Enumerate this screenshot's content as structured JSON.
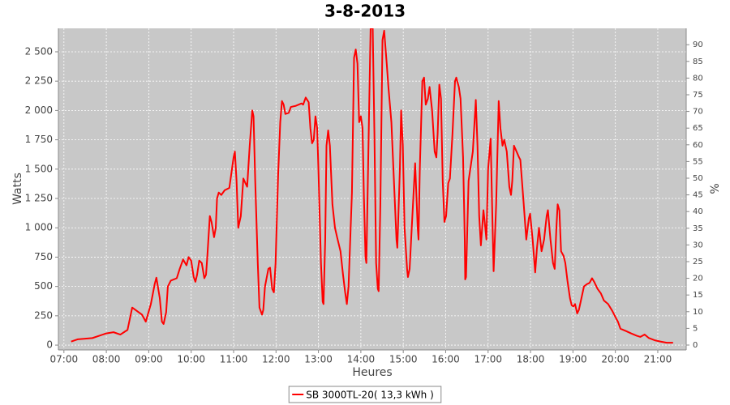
{
  "chart_data": {
    "type": "line",
    "title": "3-8-2013",
    "x_label": "Heures",
    "y_label": "Watts",
    "y2_label": "%",
    "grid": true,
    "legend": "bottom",
    "xlim": [
      6.87,
      21.67
    ],
    "xticks": [
      {
        "value": 7,
        "label": "07:00"
      },
      {
        "value": 8,
        "label": "08:00"
      },
      {
        "value": 9,
        "label": "09:00"
      },
      {
        "value": 10,
        "label": "10:00"
      },
      {
        "value": 11,
        "label": "11:00"
      },
      {
        "value": 12,
        "label": "12:00"
      },
      {
        "value": 13,
        "label": "13:00"
      },
      {
        "value": 14,
        "label": "14:00"
      },
      {
        "value": 15,
        "label": "15:00"
      },
      {
        "value": 16,
        "label": "16:00"
      },
      {
        "value": 17,
        "label": "17:00"
      },
      {
        "value": 18,
        "label": "18:00"
      },
      {
        "value": 19,
        "label": "19:00"
      },
      {
        "value": 20,
        "label": "20:00"
      },
      {
        "value": 21,
        "label": "21:00"
      }
    ],
    "ylim": [
      -41,
      2700
    ],
    "yticks": [
      0,
      250,
      500,
      750,
      {
        "value": 1000,
        "label": "1 000"
      },
      {
        "value": 1250,
        "label": "1 250"
      },
      {
        "value": 1500,
        "label": "1 500"
      },
      {
        "value": 1750,
        "label": "1 750"
      },
      {
        "value": 2000,
        "label": "2 000"
      },
      {
        "value": 2250,
        "label": "2 250"
      },
      {
        "value": 2500,
        "label": "2 500"
      }
    ],
    "y2lim": [
      -1.46,
      94.9
    ],
    "y2ticks": [
      0,
      5,
      10,
      15,
      20,
      25,
      30,
      35,
      40,
      45,
      50,
      55,
      60,
      65,
      70,
      75,
      80,
      85,
      90
    ],
    "x": [
      7.17,
      7.33,
      7.67,
      8.0,
      8.17,
      8.33,
      8.5,
      8.61,
      8.84,
      8.93,
      9.05,
      9.14,
      9.18,
      9.26,
      9.31,
      9.35,
      9.41,
      9.45,
      9.52,
      9.66,
      9.73,
      9.81,
      9.89,
      9.94,
      10.0,
      10.06,
      10.1,
      10.14,
      10.19,
      10.25,
      10.31,
      10.35,
      10.38,
      10.44,
      10.48,
      10.54,
      10.58,
      10.61,
      10.65,
      10.71,
      10.79,
      10.9,
      11.0,
      11.03,
      11.07,
      11.11,
      11.17,
      11.23,
      11.28,
      11.32,
      11.38,
      11.44,
      11.47,
      11.51,
      11.57,
      11.61,
      11.67,
      11.7,
      11.74,
      11.82,
      11.86,
      11.91,
      11.95,
      11.99,
      12.05,
      12.1,
      12.14,
      12.18,
      12.22,
      12.3,
      12.35,
      12.47,
      12.6,
      12.64,
      12.7,
      12.77,
      12.81,
      12.85,
      12.89,
      12.93,
      12.97,
      13.0,
      13.06,
      13.1,
      13.12,
      13.16,
      13.19,
      13.23,
      13.27,
      13.33,
      13.39,
      13.44,
      13.52,
      13.58,
      13.63,
      13.67,
      13.71,
      13.79,
      13.84,
      13.88,
      13.92,
      13.96,
      14.0,
      14.04,
      14.07,
      14.11,
      14.13,
      14.17,
      14.23,
      14.28,
      14.32,
      14.36,
      14.4,
      14.42,
      14.46,
      14.51,
      14.55,
      14.61,
      14.65,
      14.72,
      14.78,
      14.84,
      14.86,
      14.92,
      14.95,
      14.99,
      15.03,
      15.09,
      15.11,
      15.15,
      15.2,
      15.28,
      15.34,
      15.36,
      15.39,
      15.45,
      15.49,
      15.53,
      15.58,
      15.62,
      15.68,
      15.74,
      15.78,
      15.81,
      15.85,
      15.89,
      15.93,
      15.97,
      16.01,
      16.06,
      16.1,
      16.16,
      16.22,
      16.25,
      16.31,
      16.35,
      16.41,
      16.45,
      16.46,
      16.48,
      16.54,
      16.6,
      16.64,
      16.71,
      16.75,
      16.79,
      16.83,
      16.89,
      16.92,
      16.96,
      17.0,
      17.06,
      17.1,
      17.13,
      17.19,
      17.25,
      17.29,
      17.34,
      17.38,
      17.44,
      17.5,
      17.54,
      17.57,
      17.61,
      17.67,
      17.73,
      17.76,
      17.84,
      17.9,
      17.96,
      17.99,
      18.05,
      18.11,
      18.15,
      18.2,
      18.26,
      18.32,
      18.38,
      18.41,
      18.47,
      18.53,
      18.57,
      18.61,
      18.64,
      18.68,
      18.72,
      18.78,
      18.82,
      18.87,
      18.93,
      18.97,
      19.01,
      19.05,
      19.1,
      19.14,
      19.2,
      19.26,
      19.33,
      19.39,
      19.45,
      19.5,
      19.58,
      19.66,
      19.73,
      19.83,
      19.93,
      20.0,
      20.06,
      20.12,
      20.25,
      20.37,
      20.5,
      20.59,
      20.69,
      20.79,
      20.94,
      21.07,
      21.21,
      21.36
    ],
    "series": [
      {
        "name": "SB 3000TL-20( 13,3 kWh )",
        "color": "#ff0000",
        "values": [
          30,
          50,
          60,
          100,
          110,
          90,
          130,
          320,
          260,
          200,
          350,
          520,
          575,
          400,
          200,
          180,
          280,
          500,
          550,
          570,
          650,
          730,
          680,
          750,
          720,
          580,
          540,
          600,
          720,
          700,
          570,
          600,
          750,
          1100,
          1050,
          920,
          1000,
          1250,
          1300,
          1280,
          1320,
          1340,
          1600,
          1650,
          1400,
          1000,
          1100,
          1420,
          1380,
          1350,
          1700,
          2000,
          1950,
          1400,
          700,
          320,
          260,
          300,
          500,
          650,
          660,
          480,
          450,
          700,
          1450,
          1900,
          2080,
          2050,
          1970,
          1980,
          2030,
          2040,
          2060,
          2050,
          2110,
          2070,
          1850,
          1720,
          1750,
          1950,
          1850,
          1500,
          700,
          370,
          350,
          900,
          1700,
          1830,
          1700,
          1200,
          1000,
          920,
          800,
          600,
          450,
          350,
          500,
          1300,
          2450,
          2520,
          2400,
          1900,
          1950,
          1850,
          1300,
          750,
          700,
          1500,
          2700,
          2700,
          1800,
          700,
          480,
          460,
          1200,
          2600,
          2680,
          2400,
          2200,
          1900,
          1400,
          900,
          830,
          1500,
          2000,
          1700,
          1000,
          650,
          580,
          650,
          1000,
          1550,
          1000,
          900,
          1500,
          2250,
          2280,
          2050,
          2100,
          2200,
          2000,
          1650,
          1600,
          1800,
          2220,
          2100,
          1400,
          1050,
          1100,
          1380,
          1420,
          1800,
          2250,
          2280,
          2200,
          2100,
          1600,
          900,
          560,
          580,
          1400,
          1550,
          1650,
          2090,
          1700,
          1100,
          850,
          1150,
          1050,
          900,
          1500,
          1760,
          1100,
          630,
          1200,
          2080,
          1850,
          1700,
          1750,
          1650,
          1350,
          1280,
          1400,
          1700,
          1650,
          1600,
          1580,
          1200,
          900,
          1080,
          1120,
          900,
          620,
          820,
          1000,
          800,
          900,
          1100,
          1150,
          900,
          700,
          650,
          1000,
          1200,
          1150,
          800,
          760,
          700,
          550,
          400,
          340,
          330,
          350,
          270,
          300,
          400,
          500,
          520,
          530,
          570,
          540,
          480,
          440,
          380,
          350,
          290,
          240,
          200,
          140,
          120,
          100,
          80,
          70,
          90,
          60,
          40,
          30,
          20,
          20
        ]
      }
    ]
  }
}
